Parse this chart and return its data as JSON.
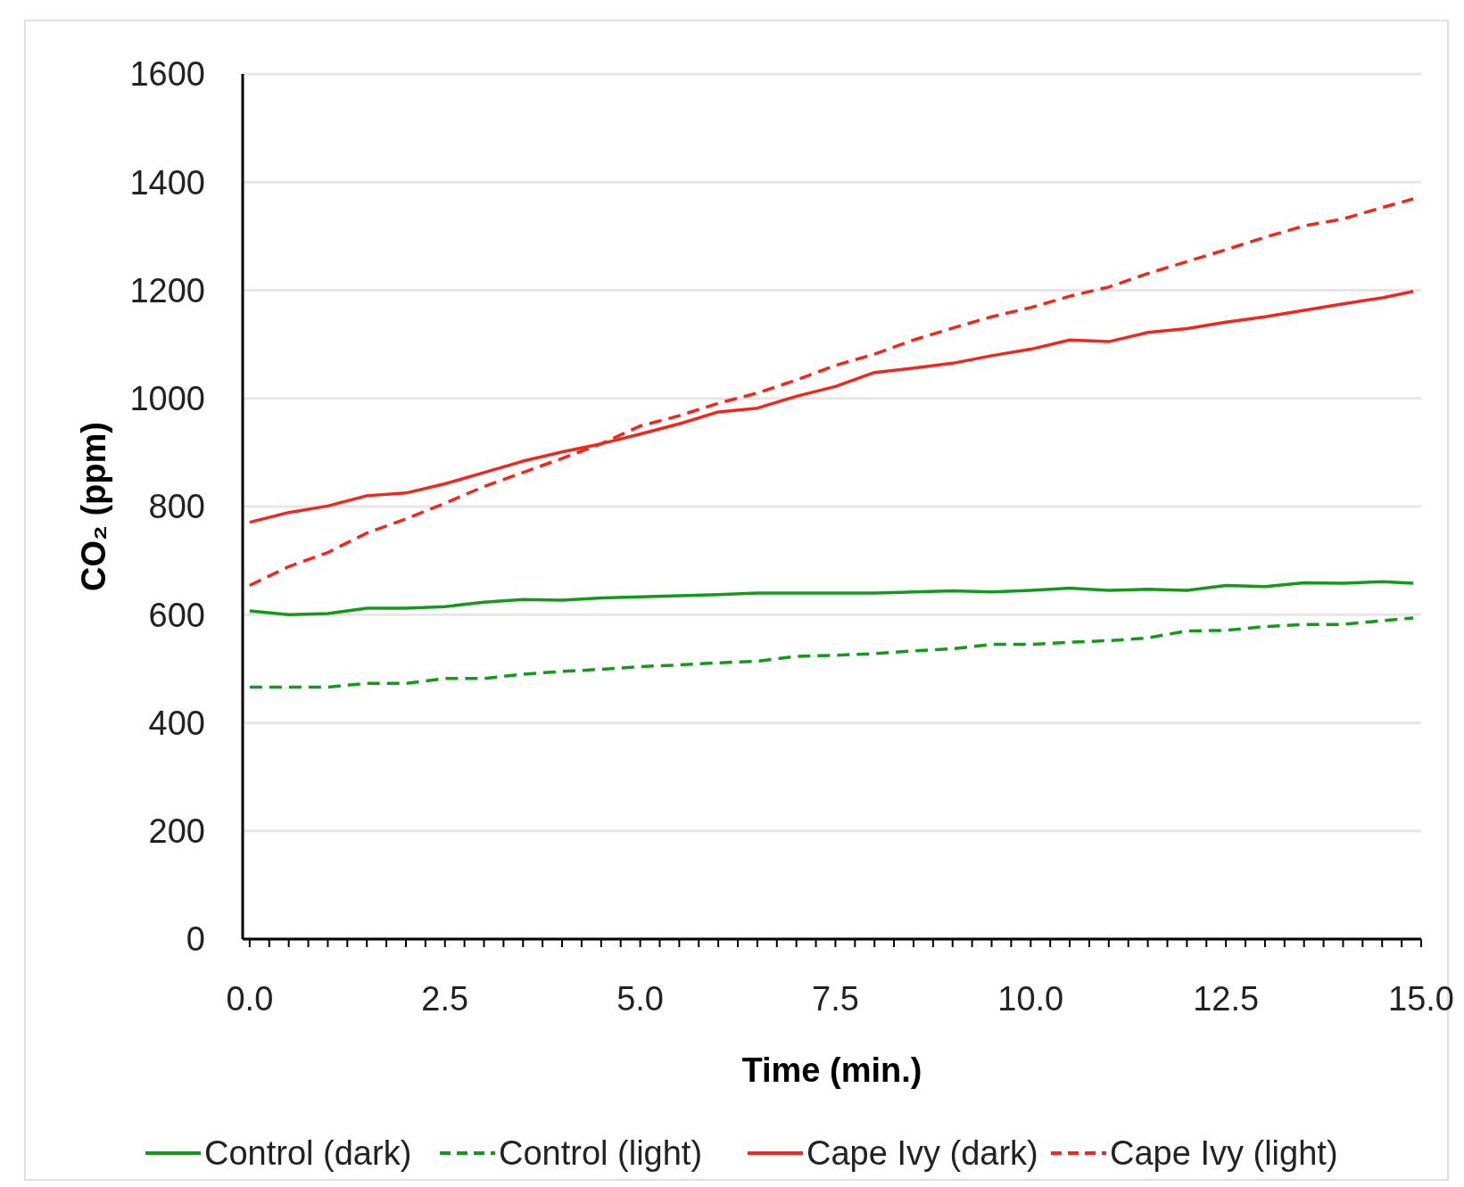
{
  "chart_data": {
    "type": "line",
    "xlabel": "Time (min.)",
    "ylabel": "CO₂ (ppm)",
    "xlim": [
      -0.09,
      15.0
    ],
    "ylim": [
      0,
      1600
    ],
    "yticks": [
      0,
      200,
      400,
      600,
      800,
      1000,
      1200,
      1400,
      1600
    ],
    "xticks": [
      {
        "value": 0,
        "label": "0.0"
      },
      {
        "value": 0.25,
        "label": null
      },
      {
        "value": 0.5,
        "label": null
      },
      {
        "value": 0.75,
        "label": null
      },
      {
        "value": 1,
        "label": null
      },
      {
        "value": 1.25,
        "label": null
      },
      {
        "value": 1.5,
        "label": null
      },
      {
        "value": 1.75,
        "label": null
      },
      {
        "value": 2,
        "label": null
      },
      {
        "value": 2.25,
        "label": null
      },
      {
        "value": 2.5,
        "label": "2.5"
      },
      {
        "value": 2.75,
        "label": null
      },
      {
        "value": 3,
        "label": null
      },
      {
        "value": 3.25,
        "label": null
      },
      {
        "value": 3.5,
        "label": null
      },
      {
        "value": 3.75,
        "label": null
      },
      {
        "value": 4,
        "label": null
      },
      {
        "value": 4.25,
        "label": null
      },
      {
        "value": 4.5,
        "label": null
      },
      {
        "value": 4.75,
        "label": null
      },
      {
        "value": 5,
        "label": "5.0"
      },
      {
        "value": 5.25,
        "label": null
      },
      {
        "value": 5.5,
        "label": null
      },
      {
        "value": 5.75,
        "label": null
      },
      {
        "value": 6,
        "label": null
      },
      {
        "value": 6.25,
        "label": null
      },
      {
        "value": 6.5,
        "label": null
      },
      {
        "value": 6.75,
        "label": null
      },
      {
        "value": 7,
        "label": null
      },
      {
        "value": 7.25,
        "label": null
      },
      {
        "value": 7.5,
        "label": "7.5"
      },
      {
        "value": 7.75,
        "label": null
      },
      {
        "value": 8,
        "label": null
      },
      {
        "value": 8.25,
        "label": null
      },
      {
        "value": 8.5,
        "label": null
      },
      {
        "value": 8.75,
        "label": null
      },
      {
        "value": 9,
        "label": null
      },
      {
        "value": 9.25,
        "label": null
      },
      {
        "value": 9.5,
        "label": null
      },
      {
        "value": 9.75,
        "label": null
      },
      {
        "value": 10,
        "label": "10.0"
      },
      {
        "value": 10.25,
        "label": null
      },
      {
        "value": 10.5,
        "label": null
      },
      {
        "value": 10.75,
        "label": null
      },
      {
        "value": 11,
        "label": null
      },
      {
        "value": 11.25,
        "label": null
      },
      {
        "value": 11.5,
        "label": null
      },
      {
        "value": 11.75,
        "label": null
      },
      {
        "value": 12,
        "label": null
      },
      {
        "value": 12.25,
        "label": null
      },
      {
        "value": 12.5,
        "label": "12.5"
      },
      {
        "value": 12.75,
        "label": null
      },
      {
        "value": 13,
        "label": null
      },
      {
        "value": 13.25,
        "label": null
      },
      {
        "value": 13.5,
        "label": null
      },
      {
        "value": 13.75,
        "label": null
      },
      {
        "value": 14,
        "label": null
      },
      {
        "value": 14.25,
        "label": null
      },
      {
        "value": 14.5,
        "label": null
      },
      {
        "value": 14.75,
        "label": null
      },
      {
        "value": 15,
        "label": "15.0"
      }
    ],
    "x": [
      0,
      0.5,
      1,
      1.5,
      2,
      2.5,
      3,
      3.5,
      4,
      4.5,
      5,
      5.5,
      6,
      6.5,
      7,
      7.5,
      8,
      8.5,
      9,
      9.5,
      10,
      10.5,
      11,
      11.5,
      12,
      12.5,
      13,
      13.5,
      14,
      14.5,
      14.9
    ],
    "series": [
      {
        "name": "Control (dark)",
        "color": "#139a1a",
        "line_style": "solid",
        "values": [
          607,
          600,
          602,
          612,
          612,
          615,
          623,
          628,
          627,
          631,
          633,
          635,
          637,
          640,
          640,
          640,
          640,
          642,
          644,
          642,
          645,
          649,
          645,
          647,
          645,
          654,
          652,
          659,
          658,
          661,
          658
        ]
      },
      {
        "name": "Control (light)",
        "color": "#139a1a",
        "line_style": "dashed",
        "values": [
          466,
          466,
          466,
          473,
          473,
          482,
          482,
          490,
          495,
          499,
          504,
          507,
          511,
          514,
          523,
          525,
          528,
          533,
          537,
          545,
          545,
          549,
          552,
          557,
          570,
          571,
          578,
          582,
          582,
          589,
          594
        ]
      },
      {
        "name": "Cape Ivy (dark)",
        "color": "#f2261c",
        "line_style": "solid",
        "values": [
          771,
          789,
          801,
          820,
          825,
          842,
          863,
          884,
          901,
          916,
          934,
          953,
          975,
          982,
          1004,
          1022,
          1048,
          1056,
          1065,
          1079,
          1091,
          1108,
          1105,
          1122,
          1129,
          1141,
          1151,
          1163,
          1175,
          1186,
          1198
        ]
      },
      {
        "name": "Cape Ivy (light)",
        "color": "#f2261c",
        "line_style": "dashed",
        "values": [
          654,
          689,
          715,
          751,
          777,
          806,
          837,
          863,
          889,
          916,
          949,
          968,
          991,
          1010,
          1034,
          1061,
          1082,
          1108,
          1130,
          1151,
          1168,
          1189,
          1206,
          1231,
          1253,
          1275,
          1298,
          1319,
          1332,
          1353,
          1369
        ]
      }
    ],
    "grid": "y",
    "legend": "bottom",
    "marker": "none"
  }
}
